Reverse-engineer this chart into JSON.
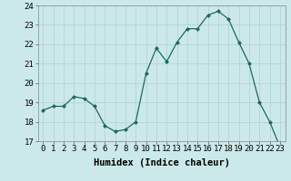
{
  "x": [
    0,
    1,
    2,
    3,
    4,
    5,
    6,
    7,
    8,
    9,
    10,
    11,
    12,
    13,
    14,
    15,
    16,
    17,
    18,
    19,
    20,
    21,
    22,
    23
  ],
  "y": [
    18.6,
    18.8,
    18.8,
    19.3,
    19.2,
    18.8,
    17.8,
    17.5,
    17.6,
    18.0,
    20.5,
    21.8,
    21.1,
    22.1,
    22.8,
    22.8,
    23.5,
    23.7,
    23.3,
    22.1,
    21.0,
    19.0,
    18.0,
    16.7
  ],
  "line_color": "#1a6b5a",
  "marker": "D",
  "marker_size": 2.0,
  "bg_color": "#cce9e9",
  "grid_color": "#b0d0d0",
  "xlabel": "Humidex (Indice chaleur)",
  "ylim": [
    17,
    24
  ],
  "yticks": [
    17,
    18,
    19,
    20,
    21,
    22,
    23,
    24
  ],
  "xticks": [
    0,
    1,
    2,
    3,
    4,
    5,
    6,
    7,
    8,
    9,
    10,
    11,
    12,
    13,
    14,
    15,
    16,
    17,
    18,
    19,
    20,
    21,
    22,
    23
  ],
  "xlabel_fontsize": 7.5,
  "tick_fontsize": 6.5,
  "linewidth": 0.9
}
